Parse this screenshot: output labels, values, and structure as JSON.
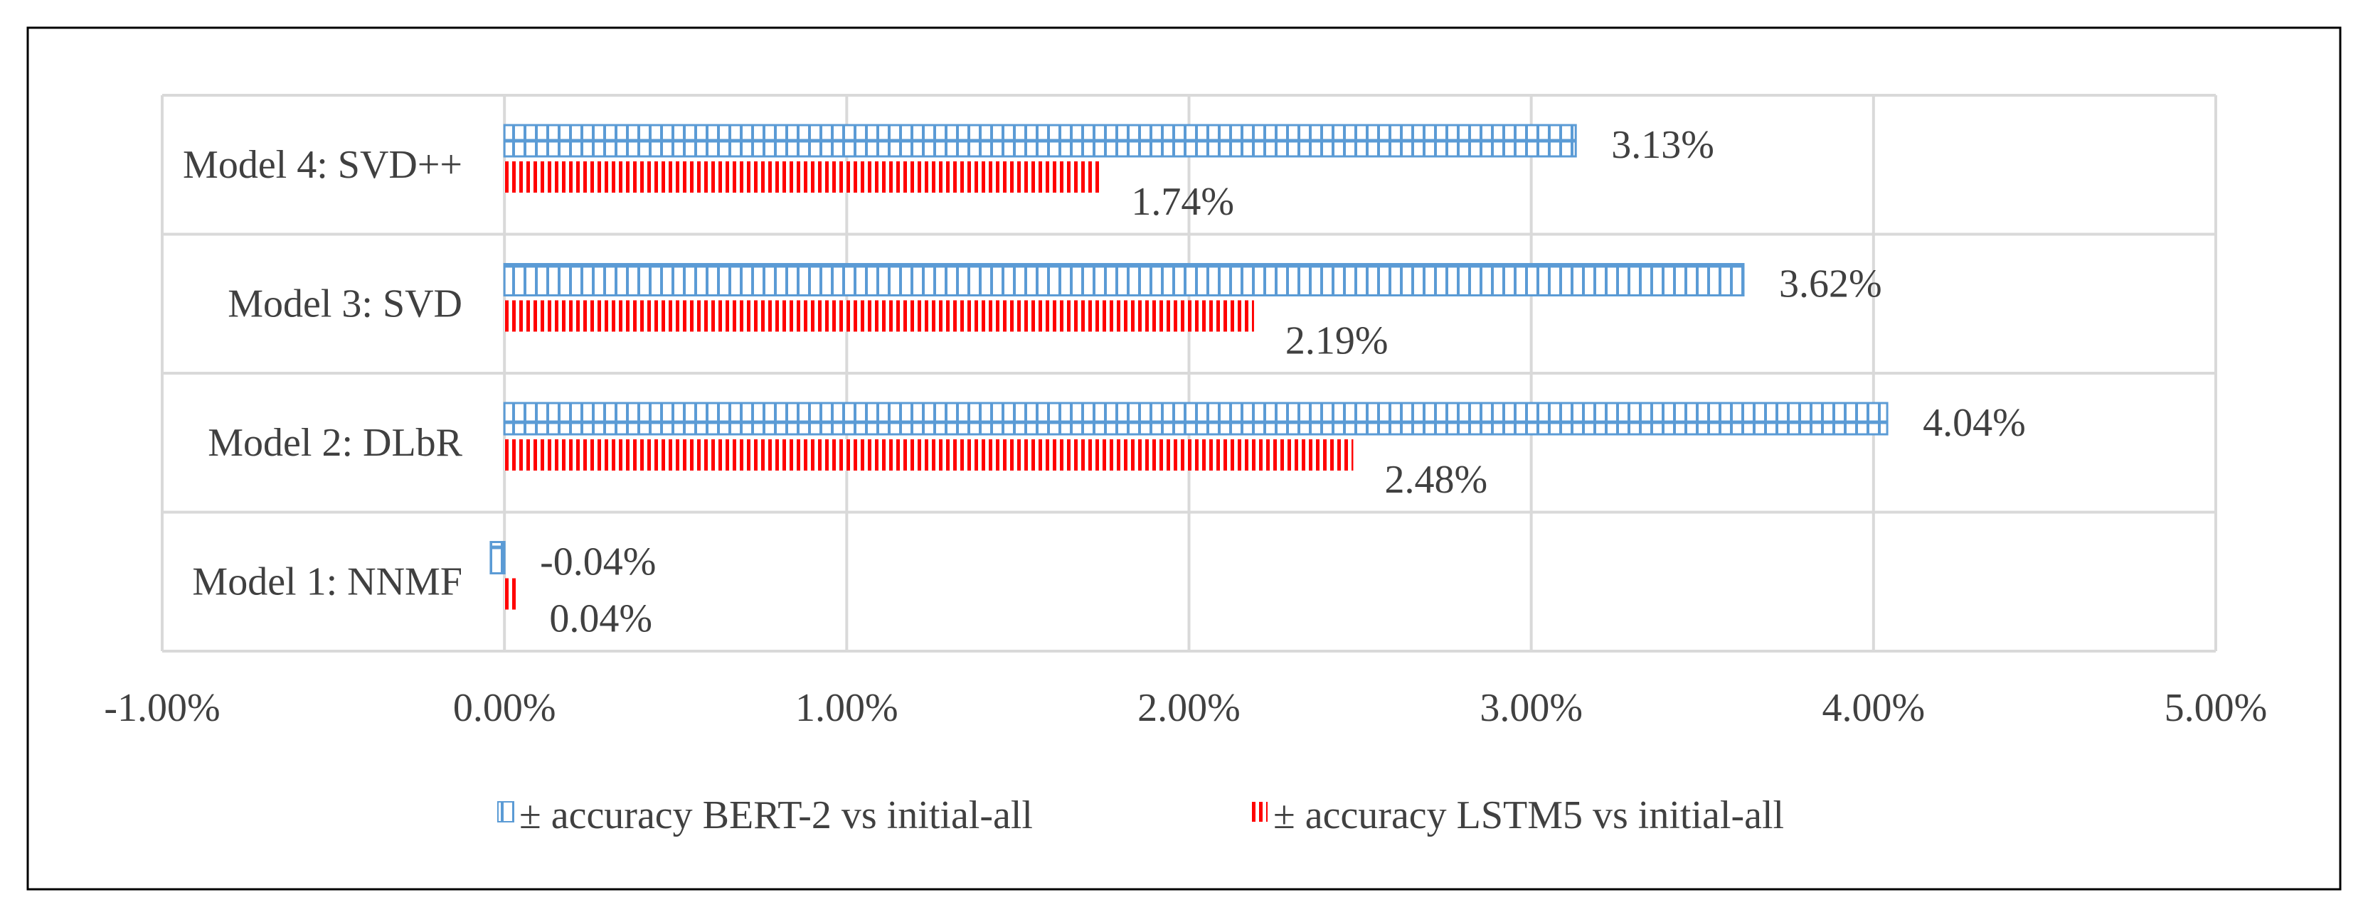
{
  "colors": {
    "bert": "#5b9bd5",
    "lstm": "#ff0000",
    "grid": "#d9d9d9",
    "border": "#000000",
    "text": "#404040"
  },
  "chart_data": {
    "type": "bar",
    "orientation": "horizontal",
    "categories": [
      "Model 4: SVD++",
      "Model 3: SVD",
      "Model 2: DLbR",
      "Model 1: NNMF"
    ],
    "series": [
      {
        "name": "± accuracy BERT-2 vs initial-all",
        "values": [
          3.13,
          3.62,
          4.04,
          -0.04
        ],
        "data_labels": [
          "3.13%",
          "3.62%",
          "4.04%",
          "-0.04%"
        ],
        "color": "#5b9bd5",
        "pattern": "horizontal-line-with-vertical-ticks"
      },
      {
        "name": "± accuracy LSTM5 vs initial-all",
        "values": [
          1.74,
          2.19,
          2.48,
          0.04
        ],
        "data_labels": [
          "1.74%",
          "2.19%",
          "2.48%",
          "0.04%"
        ],
        "color": "#ff0000",
        "pattern": "vertical-stripes"
      }
    ],
    "xlim": [
      -1.0,
      5.0
    ],
    "x_ticks": [
      -1,
      0,
      1,
      2,
      3,
      4,
      5
    ],
    "x_tick_labels": [
      "-1.00%",
      "0.00%",
      "1.00%",
      "2.00%",
      "3.00%",
      "4.00%",
      "5.00%"
    ],
    "xlabel": "",
    "ylabel": "",
    "title": "",
    "grid": true,
    "legend_position": "bottom"
  }
}
